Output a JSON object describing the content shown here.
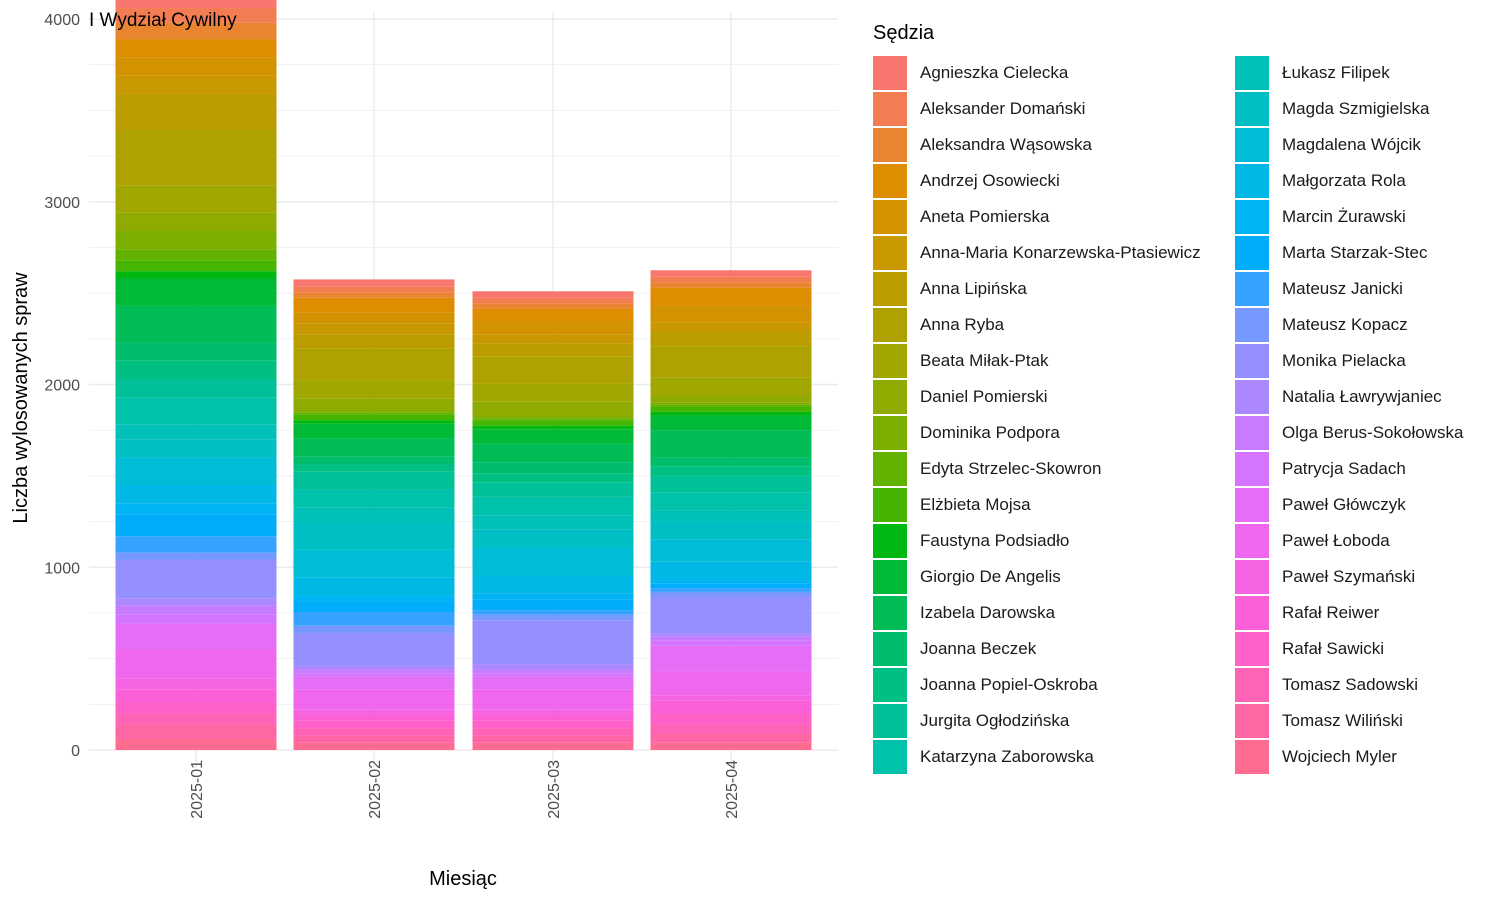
{
  "chart_data": {
    "type": "bar",
    "stacked": true,
    "title": "I Wydział Cywilny",
    "xlabel": "Miesiąc",
    "ylabel": "Liczba wylosowanych spraw",
    "ylim": [
      0,
      4000
    ],
    "yticks": [
      0,
      1000,
      2000,
      3000,
      4000
    ],
    "grid": true,
    "legend_title": "Sędzia",
    "legend_position": "right",
    "categories": [
      "2025-01",
      "2025-02",
      "2025-03",
      "2025-04"
    ],
    "series": [
      {
        "name": "Agnieszka Cielecka",
        "color": "#F8766D",
        "values": [
          80,
          40,
          35,
          35
        ]
      },
      {
        "name": "Aleksander Domański",
        "color": "#F27D52",
        "values": [
          80,
          30,
          30,
          30
        ]
      },
      {
        "name": "Aleksandra Wąsowska",
        "color": "#E98430",
        "values": [
          90,
          30,
          30,
          30
        ]
      },
      {
        "name": "Andrzej Osowiecki",
        "color": "#DE8C00",
        "values": [
          100,
          80,
          70,
          100
        ]
      },
      {
        "name": "Aneta Pomierska",
        "color": "#D39200",
        "values": [
          100,
          60,
          70,
          90
        ]
      },
      {
        "name": "Anna-Maria Konarzewska-Ptasiewicz",
        "color": "#C99800",
        "values": [
          100,
          60,
          50,
          50
        ]
      },
      {
        "name": "Anna Lipińska",
        "color": "#BC9D00",
        "values": [
          200,
          80,
          70,
          80
        ]
      },
      {
        "name": "Anna Ryba",
        "color": "#AEA200",
        "values": [
          300,
          170,
          150,
          170
        ]
      },
      {
        "name": "Beata Miłak-Ptak",
        "color": "#A0A700",
        "values": [
          150,
          100,
          100,
          100
        ]
      },
      {
        "name": "Daniel Pomierski",
        "color": "#8FAA00",
        "values": [
          100,
          70,
          80,
          40
        ]
      },
      {
        "name": "Dominika Podpora",
        "color": "#7CAE00",
        "values": [
          100,
          10,
          10,
          10
        ]
      },
      {
        "name": "Edyta Strzelec-Skowron",
        "color": "#64B200",
        "values": [
          60,
          10,
          10,
          10
        ]
      },
      {
        "name": "Elżbieta Mojsa",
        "color": "#45B500",
        "values": [
          60,
          30,
          30,
          30
        ]
      },
      {
        "name": "Faustyna Podsiadło",
        "color": "#00B812",
        "values": [
          40,
          20,
          20,
          20
        ]
      },
      {
        "name": "Giorgio De Angelis",
        "color": "#00BA38",
        "values": [
          150,
          80,
          80,
          80
        ]
      },
      {
        "name": "Izabela Darowska",
        "color": "#00BC56",
        "values": [
          200,
          100,
          100,
          150
        ]
      },
      {
        "name": "Joanna Beczek",
        "color": "#00BD6E",
        "values": [
          100,
          40,
          60,
          50
        ]
      },
      {
        "name": "Joanna Popiel-Oskroba",
        "color": "#00BF83",
        "values": [
          100,
          40,
          50,
          50
        ]
      },
      {
        "name": "Jurgita Ogłodzińska",
        "color": "#00C097",
        "values": [
          100,
          100,
          80,
          90
        ]
      },
      {
        "name": "Katarzyna Zaborowska",
        "color": "#00C1A9",
        "values": [
          150,
          100,
          100,
          100
        ]
      },
      {
        "name": "Łukasz Filipek",
        "color": "#00C0B8",
        "values": [
          80,
          80,
          80,
          60
        ]
      },
      {
        "name": "Magda Szmigielska",
        "color": "#00BFC4",
        "values": [
          100,
          150,
          100,
          100
        ]
      },
      {
        "name": "Magdalena Wójcik",
        "color": "#00BCD6",
        "values": [
          150,
          150,
          150,
          120
        ]
      },
      {
        "name": "Małgorzata Rola",
        "color": "#00B8E5",
        "values": [
          100,
          100,
          100,
          100
        ]
      },
      {
        "name": "Marcin Żurawski",
        "color": "#00B3F2",
        "values": [
          60,
          30,
          30,
          20
        ]
      },
      {
        "name": "Marta Starzak-Stec",
        "color": "#00ADFA",
        "values": [
          120,
          60,
          60,
          25
        ]
      },
      {
        "name": "Mateusz Janicki",
        "color": "#35A2FF",
        "values": [
          90,
          75,
          25,
          20
        ]
      },
      {
        "name": "Mateusz Kopacz",
        "color": "#7698FF",
        "values": [
          40,
          40,
          30,
          25
        ]
      },
      {
        "name": "Monika Pielacka",
        "color": "#9590FF",
        "values": [
          210,
          180,
          240,
          200
        ]
      },
      {
        "name": "Natalia Ławrywjaniec",
        "color": "#AC88FF",
        "values": [
          40,
          20,
          30,
          20
        ]
      },
      {
        "name": "Olga Berus-Sokołowska",
        "color": "#C77CFF",
        "values": [
          50,
          20,
          20,
          20
        ]
      },
      {
        "name": "Patrycja Sadach",
        "color": "#D574FE",
        "values": [
          50,
          20,
          20,
          30
        ]
      },
      {
        "name": "Paweł Główczyk",
        "color": "#E56EF7",
        "values": [
          140,
          70,
          70,
          140
        ]
      },
      {
        "name": "Paweł Łoboda",
        "color": "#EE67EC",
        "values": [
          160,
          110,
          110,
          130
        ]
      },
      {
        "name": "Paweł Szymański",
        "color": "#F564E3",
        "values": [
          60,
          20,
          20,
          30
        ]
      },
      {
        "name": "Rafał Reiwer",
        "color": "#FB61D7",
        "values": [
          70,
          40,
          40,
          70
        ]
      },
      {
        "name": "Rafał Sawicki",
        "color": "#FF61C9",
        "values": [
          60,
          40,
          40,
          60
        ]
      },
      {
        "name": "Tomasz Sadowski",
        "color": "#FF63B6",
        "values": [
          60,
          40,
          40,
          50
        ]
      },
      {
        "name": "Tomasz Wiliński",
        "color": "#FF67A4",
        "values": [
          80,
          40,
          40,
          50
        ]
      },
      {
        "name": "Wojciech Myler",
        "color": "#FF6C91",
        "values": [
          60,
          40,
          40,
          40
        ]
      }
    ]
  }
}
